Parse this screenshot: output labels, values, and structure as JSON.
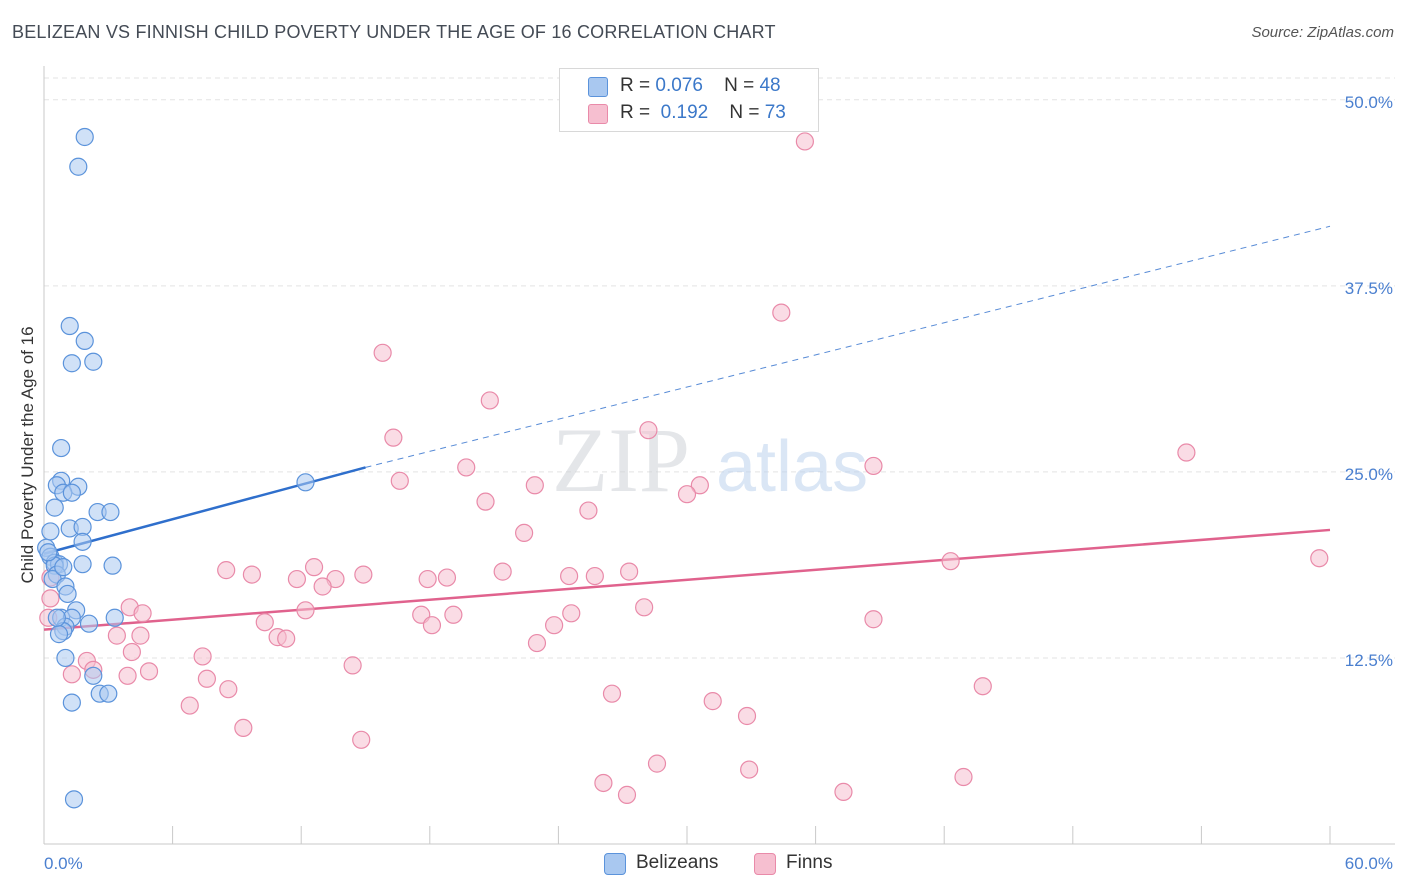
{
  "title": "BELIZEAN VS FINNISH CHILD POVERTY UNDER THE AGE OF 16 CORRELATION CHART",
  "source": "Source: ZipAtlas.com",
  "watermark": {
    "zip": "ZIP",
    "atlas": "atlas"
  },
  "colors": {
    "belizean_fill": "#a9c8f0",
    "belizean_stroke": "#5b93db",
    "belizean_line": "#2f6fcc",
    "finn_fill": "#f6bfd0",
    "finn_stroke": "#e98aa9",
    "finn_line": "#e0628d",
    "axis_text": "#4a7fcf",
    "grid": "#e3e3e3"
  },
  "stats": [
    {
      "r_label": "R =",
      "r_value": "0.076",
      "n_label": "N =",
      "n_value": "48"
    },
    {
      "r_label": "R =",
      "r_value": "0.192",
      "n_label": "N =",
      "n_value": "73"
    }
  ],
  "legend": {
    "belizean": "Belizeans",
    "finn": "Finns"
  },
  "chart_data": {
    "type": "scatter",
    "title": "BELIZEAN VS FINNISH CHILD POVERTY UNDER THE AGE OF 16 CORRELATION CHART",
    "xlabel": "",
    "ylabel": "Child Poverty Under the Age of 16",
    "xlim": [
      0,
      60
    ],
    "ylim": [
      0,
      52
    ],
    "x_tick_labels": [
      "0.0%",
      "60.0%"
    ],
    "y_ticks": [
      12.5,
      25.0,
      37.5,
      50.0
    ],
    "y_tick_labels": [
      "12.5%",
      "25.0%",
      "37.5%",
      "50.0%"
    ],
    "series": [
      {
        "name": "Belizeans",
        "r": 0.076,
        "n": 48,
        "trend": {
          "x0": 0,
          "y0": 19.5,
          "x1": 15,
          "y1": 25.3,
          "dashed_to_x": 60,
          "dashed_to_y": 41.5
        },
        "points": [
          [
            1.9,
            47.5
          ],
          [
            1.6,
            45.5
          ],
          [
            1.2,
            34.8
          ],
          [
            1.9,
            33.8
          ],
          [
            1.3,
            32.3
          ],
          [
            2.3,
            32.4
          ],
          [
            0.8,
            26.6
          ],
          [
            0.8,
            24.4
          ],
          [
            0.6,
            24.1
          ],
          [
            1.6,
            24.0
          ],
          [
            0.9,
            23.6
          ],
          [
            1.3,
            23.6
          ],
          [
            0.5,
            22.6
          ],
          [
            2.5,
            22.3
          ],
          [
            3.1,
            22.3
          ],
          [
            1.2,
            21.2
          ],
          [
            1.8,
            21.3
          ],
          [
            0.3,
            21.0
          ],
          [
            1.8,
            20.3
          ],
          [
            0.1,
            19.9
          ],
          [
            0.3,
            19.3
          ],
          [
            0.5,
            18.9
          ],
          [
            0.7,
            18.8
          ],
          [
            0.5,
            18.7
          ],
          [
            1.8,
            18.8
          ],
          [
            3.2,
            18.7
          ],
          [
            0.6,
            18.1
          ],
          [
            0.4,
            17.8
          ],
          [
            1.0,
            17.3
          ],
          [
            1.1,
            16.8
          ],
          [
            1.5,
            15.7
          ],
          [
            0.8,
            15.2
          ],
          [
            1.3,
            15.2
          ],
          [
            3.3,
            15.2
          ],
          [
            2.1,
            14.8
          ],
          [
            1.0,
            14.6
          ],
          [
            0.9,
            14.3
          ],
          [
            0.7,
            14.1
          ],
          [
            1.0,
            12.5
          ],
          [
            2.3,
            11.3
          ],
          [
            2.6,
            10.1
          ],
          [
            3.0,
            10.1
          ],
          [
            1.3,
            9.5
          ],
          [
            1.4,
            3.0
          ],
          [
            12.2,
            24.3
          ],
          [
            0.6,
            15.2
          ],
          [
            0.2,
            19.6
          ],
          [
            0.9,
            18.6
          ]
        ]
      },
      {
        "name": "Finns",
        "r": 0.192,
        "n": 73,
        "trend": {
          "x0": 0,
          "y0": 14.4,
          "x1": 60,
          "y1": 21.1
        },
        "points": [
          [
            35.5,
            47.2
          ],
          [
            34.4,
            35.7
          ],
          [
            15.8,
            33.0
          ],
          [
            20.8,
            29.8
          ],
          [
            28.2,
            27.8
          ],
          [
            16.3,
            27.3
          ],
          [
            53.3,
            26.3
          ],
          [
            19.7,
            25.3
          ],
          [
            38.7,
            25.4
          ],
          [
            16.6,
            24.4
          ],
          [
            22.9,
            24.1
          ],
          [
            30.6,
            24.1
          ],
          [
            30.0,
            23.5
          ],
          [
            20.6,
            23.0
          ],
          [
            25.4,
            22.4
          ],
          [
            22.4,
            20.9
          ],
          [
            59.5,
            19.2
          ],
          [
            42.3,
            19.0
          ],
          [
            12.6,
            18.6
          ],
          [
            8.5,
            18.4
          ],
          [
            21.4,
            18.3
          ],
          [
            27.3,
            18.3
          ],
          [
            9.7,
            18.1
          ],
          [
            14.9,
            18.1
          ],
          [
            24.5,
            18.0
          ],
          [
            25.7,
            18.0
          ],
          [
            13.6,
            17.8
          ],
          [
            11.8,
            17.8
          ],
          [
            17.9,
            17.8
          ],
          [
            18.8,
            17.9
          ],
          [
            13.0,
            17.3
          ],
          [
            4.0,
            15.9
          ],
          [
            28.0,
            15.9
          ],
          [
            12.2,
            15.7
          ],
          [
            4.6,
            15.5
          ],
          [
            17.6,
            15.4
          ],
          [
            19.1,
            15.4
          ],
          [
            24.6,
            15.5
          ],
          [
            38.7,
            15.1
          ],
          [
            10.3,
            14.9
          ],
          [
            18.1,
            14.7
          ],
          [
            23.8,
            14.7
          ],
          [
            4.5,
            14.0
          ],
          [
            10.9,
            13.9
          ],
          [
            11.3,
            13.8
          ],
          [
            3.4,
            14.0
          ],
          [
            4.1,
            12.9
          ],
          [
            2.0,
            12.3
          ],
          [
            23.0,
            13.5
          ],
          [
            7.4,
            12.6
          ],
          [
            14.4,
            12.0
          ],
          [
            2.3,
            11.7
          ],
          [
            4.9,
            11.6
          ],
          [
            3.9,
            11.3
          ],
          [
            1.3,
            11.4
          ],
          [
            7.6,
            11.1
          ],
          [
            43.8,
            10.6
          ],
          [
            8.6,
            10.4
          ],
          [
            26.5,
            10.1
          ],
          [
            31.2,
            9.6
          ],
          [
            6.8,
            9.3
          ],
          [
            32.8,
            8.6
          ],
          [
            9.3,
            7.8
          ],
          [
            14.8,
            7.0
          ],
          [
            28.6,
            5.4
          ],
          [
            32.9,
            5.0
          ],
          [
            42.9,
            4.5
          ],
          [
            26.1,
            4.1
          ],
          [
            27.2,
            3.3
          ],
          [
            37.3,
            3.5
          ],
          [
            0.3,
            16.5
          ],
          [
            0.3,
            17.9
          ],
          [
            0.2,
            15.2
          ]
        ]
      }
    ]
  }
}
